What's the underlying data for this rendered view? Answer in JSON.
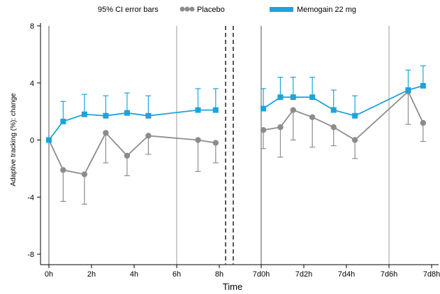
{
  "chart_data": {
    "type": "line",
    "xlabel": "Time",
    "ylabel": "Adaptive tracking (%): change",
    "ylim": [
      -8,
      8
    ],
    "yticks": [
      "8",
      "4",
      "0",
      "-4",
      "-8"
    ],
    "xtick_labels_left": [
      "0h",
      "2h",
      "4h",
      "6h",
      "8h"
    ],
    "xtick_labels_right": [
      "7d0h",
      "7d2h",
      "7d4h",
      "7d6h",
      "7d8h"
    ],
    "axis_break": "dashed double line between 8h and 7d0h",
    "grid": "vertical lines at 0h, 6h, 7d0h, 7d6h",
    "legend": {
      "position": "top",
      "items": [
        "95% CI error bars",
        "Placebo",
        "Memogain 22 mg"
      ]
    },
    "colors": {
      "placebo": "#8c8c8c",
      "memogain": "#1ba3dc"
    },
    "series": [
      {
        "name": "Placebo",
        "marker": "circle",
        "segments": [
          {
            "x_hours": [
              0,
              0.67,
              1.67,
              2.67,
              3.67,
              4.67,
              7.0,
              7.83
            ],
            "values": [
              0,
              -2.1,
              -2.4,
              0.5,
              -1.1,
              0.3,
              0.0,
              -0.2
            ],
            "ci_low": [
              0,
              -4.3,
              -4.5,
              -1.6,
              -2.5,
              -1.0,
              -2.2,
              -1.6
            ],
            "ci_high": [
              0,
              0,
              0,
              1.2,
              0,
              0.6,
              0,
              0
            ]
          },
          {
            "x_hours": [
              168.1,
              168.9,
              169.5,
              170.4,
              171.4,
              172.4,
              174.9,
              175.6
            ],
            "values": [
              0.7,
              0.9,
              2.1,
              1.6,
              0.9,
              0.0,
              3.4,
              1.2
            ],
            "ci_low": [
              -0.6,
              -1.2,
              0.0,
              -0.5,
              -0.4,
              -1.3,
              1.1,
              -0.1
            ],
            "ci_high": [
              0.7,
              0.9,
              2.1,
              1.6,
              0.9,
              0.0,
              3.4,
              1.2
            ]
          }
        ]
      },
      {
        "name": "Memogain 22 mg",
        "marker": "square",
        "segments": [
          {
            "x_hours": [
              0,
              0.67,
              1.67,
              2.67,
              3.67,
              4.67,
              7.0,
              7.83
            ],
            "values": [
              0,
              1.3,
              1.8,
              1.7,
              1.9,
              1.7,
              2.1,
              2.1
            ],
            "ci_low": [
              0,
              1.3,
              1.8,
              1.7,
              1.9,
              1.7,
              2.1,
              2.1
            ],
            "ci_high": [
              0,
              2.7,
              3.2,
              3.1,
              3.3,
              3.1,
              3.6,
              3.6
            ]
          },
          {
            "x_hours": [
              168.1,
              168.9,
              169.5,
              170.4,
              171.4,
              172.4,
              174.9,
              175.6
            ],
            "values": [
              2.2,
              3.0,
              3.0,
              3.0,
              2.1,
              1.7,
              3.5,
              3.8
            ],
            "ci_low": [
              2.2,
              3.0,
              3.0,
              3.0,
              2.1,
              1.7,
              3.5,
              3.8
            ],
            "ci_high": [
              3.6,
              4.4,
              4.4,
              4.4,
              3.5,
              3.1,
              4.9,
              5.2
            ]
          }
        ]
      }
    ]
  }
}
